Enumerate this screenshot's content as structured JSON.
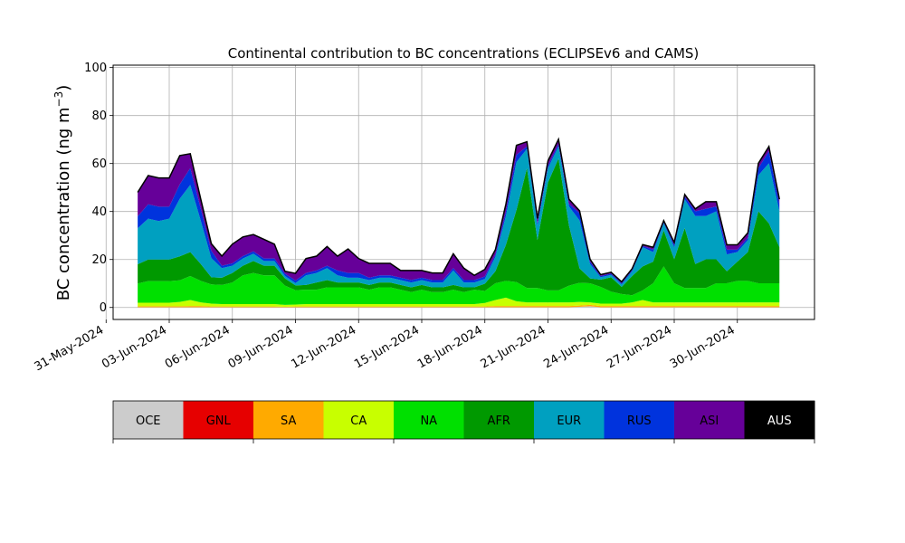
{
  "chart_data": {
    "type": "area",
    "stacked": true,
    "title": "Continental contribution to BC concentrations (ECLIPSEv6 and CAMS)",
    "ylabel_main": "BC concentration (ng m",
    "ylabel_unit_sup": "−3",
    "ylabel_close": ")",
    "xlabel": "",
    "ylim": [
      -5,
      101
    ],
    "yticks": [
      0,
      20,
      40,
      60,
      80,
      100
    ],
    "xlim": [
      "2024-05-31T08:00",
      "2024-07-03T16:00"
    ],
    "xticks": [
      "31-May-2024",
      "03-Jun-2024",
      "06-Jun-2024",
      "09-Jun-2024",
      "12-Jun-2024",
      "15-Jun-2024",
      "18-Jun-2024",
      "21-Jun-2024",
      "24-Jun-2024",
      "27-Jun-2024",
      "30-Jun-2024"
    ],
    "grid": true,
    "data_start": "2024-06-01T12:00",
    "step_hours": 12,
    "total_line_color": "#000000",
    "series": [
      {
        "name": "OCE",
        "color": "#cccccc",
        "values": [
          0.1,
          0.1,
          0.1,
          0.1,
          0.1,
          0.1,
          0.1,
          0.1,
          0.1,
          0.1,
          0.1,
          0.1,
          0.1,
          0.1,
          0.1,
          0.1,
          0.1,
          0.1,
          0.1,
          0.1,
          0.1,
          0.1,
          0.1,
          0.1,
          0.1,
          0.1,
          0.1,
          0.1,
          0.1,
          0.1,
          0.1,
          0.1,
          0.1,
          0.1,
          0.1,
          0.1,
          0.1,
          0.1,
          0.1,
          0.1,
          0.1,
          0.1,
          0.3,
          0.5,
          0.1,
          0.1,
          0.1,
          0.1,
          0.1,
          0.1,
          0.1,
          0.1,
          0.1,
          0.1,
          0.1,
          0.1,
          0.1,
          0.1,
          0.1,
          0.1,
          0.1,
          0.1
        ]
      },
      {
        "name": "GNL",
        "color": "#e60000",
        "values": [
          0,
          0,
          0,
          0,
          0,
          0,
          0,
          0,
          0,
          0,
          0,
          0,
          0,
          0,
          0,
          0,
          0,
          0,
          0,
          0,
          0,
          0,
          0,
          0,
          0,
          0,
          0,
          0,
          0,
          0,
          0,
          0,
          0,
          0,
          0,
          0,
          0,
          0,
          0,
          0,
          0,
          0,
          0,
          0,
          0,
          0,
          0,
          0,
          0,
          0,
          0,
          0,
          0,
          0,
          0,
          0,
          0,
          0,
          0,
          0,
          0,
          0
        ]
      },
      {
        "name": "SA",
        "color": "#ffaa00",
        "values": [
          0.4,
          0.4,
          0.4,
          0.4,
          0.4,
          0.5,
          0.5,
          0.3,
          0.3,
          0.3,
          0.3,
          0.3,
          0.3,
          0.3,
          0.2,
          0.3,
          0.3,
          0.3,
          0.3,
          0.3,
          0.3,
          0.3,
          0.3,
          0.3,
          0.3,
          0.3,
          0.3,
          0.3,
          0.3,
          0.3,
          0.3,
          0.3,
          0.3,
          0.3,
          0.5,
          0.5,
          0.5,
          0.5,
          0.5,
          0.5,
          0.5,
          0.5,
          0.5,
          0.6,
          0.5,
          0.5,
          0.5,
          0.5,
          0.5,
          0.5,
          0.5,
          0.5,
          0.5,
          0.5,
          0.5,
          0.5,
          0.5,
          0.5,
          0.5,
          0.5,
          0.5,
          0.5
        ]
      },
      {
        "name": "CA",
        "color": "#c8ff00",
        "values": [
          1.5,
          1.5,
          1.5,
          1.5,
          1.8,
          2.5,
          1.5,
          1.2,
          1.0,
          1.0,
          1.0,
          1.0,
          1.0,
          1.0,
          0.8,
          0.8,
          1.0,
          1.0,
          1.0,
          1.0,
          1.0,
          1.0,
          1.0,
          1.0,
          1.0,
          1.0,
          1.0,
          1.0,
          1.0,
          1.0,
          1.0,
          1.0,
          1.0,
          1.5,
          2.5,
          3.5,
          2.0,
          1.5,
          1.5,
          1.5,
          1.5,
          1.5,
          1.5,
          1.0,
          1.0,
          1.0,
          1.0,
          1.5,
          2.5,
          1.5,
          1.5,
          1.5,
          1.5,
          1.5,
          1.5,
          1.5,
          1.5,
          1.5,
          1.5,
          1.5,
          1.5,
          1.5
        ]
      },
      {
        "name": "NA",
        "color": "#00e000",
        "values": [
          8,
          9,
          9,
          9,
          9,
          10,
          9,
          8,
          8,
          9,
          12,
          13,
          12,
          12,
          8,
          6,
          6,
          6,
          7,
          7,
          7,
          7,
          6,
          7,
          7,
          6,
          5,
          6,
          5,
          5,
          6,
          5,
          6,
          5,
          7,
          7,
          8,
          6,
          6,
          5,
          5,
          7,
          8,
          8,
          7,
          5,
          4,
          3,
          4,
          8,
          15,
          8,
          6,
          6,
          6,
          8,
          8,
          9,
          9,
          8,
          8,
          8
        ]
      },
      {
        "name": "AFR",
        "color": "#009900",
        "values": [
          8,
          9,
          9,
          9,
          10,
          10,
          7,
          3,
          3,
          4,
          4,
          5,
          4,
          4,
          3,
          2,
          2,
          3,
          3,
          2,
          2,
          2,
          2,
          2,
          2,
          2,
          2,
          2,
          2,
          2,
          2,
          2,
          1,
          3,
          5,
          15,
          30,
          50,
          20,
          45,
          55,
          25,
          6,
          2,
          3,
          6,
          3,
          8,
          10,
          9,
          15,
          10,
          25,
          10,
          12,
          10,
          5,
          8,
          12,
          30,
          25,
          15
        ]
      },
      {
        "name": "EUR",
        "color": "#00a0c0",
        "values": [
          15,
          17,
          16,
          17,
          24,
          28,
          18,
          8,
          4,
          3,
          3,
          3,
          2,
          2,
          1,
          1,
          4,
          4,
          5,
          3,
          2,
          2,
          2,
          2,
          2,
          2,
          2,
          2,
          2,
          2,
          6,
          2,
          2,
          2,
          6,
          12,
          20,
          8,
          6,
          6,
          5,
          8,
          20,
          6,
          1,
          1,
          1,
          2,
          8,
          4,
          3,
          5,
          12,
          20,
          18,
          20,
          7,
          4,
          5,
          15,
          25,
          15
        ]
      },
      {
        "name": "RUS",
        "color": "#0033dd",
        "values": [
          5,
          6,
          6,
          5,
          6,
          7,
          5,
          3,
          1,
          1,
          1,
          1,
          1,
          1,
          1,
          1,
          1,
          1,
          1,
          2,
          2,
          2,
          1,
          1,
          1,
          1,
          1,
          1,
          1,
          1,
          1,
          1,
          1,
          1,
          1,
          2,
          3,
          1,
          1,
          1,
          1,
          1,
          3,
          1,
          0.5,
          0.5,
          0.5,
          0.5,
          0.5,
          1,
          0.5,
          1,
          1,
          2,
          3,
          2,
          2,
          1,
          1,
          3,
          5,
          3
        ]
      },
      {
        "name": "ASI",
        "color": "#660099",
        "values": [
          10,
          12,
          12,
          12,
          12,
          6,
          4,
          3,
          4,
          8,
          8,
          7,
          8,
          6,
          1,
          3,
          6,
          6,
          8,
          6,
          10,
          6,
          6,
          5,
          5,
          3,
          4,
          3,
          3,
          3,
          6,
          5,
          2,
          3,
          2,
          3,
          4,
          2,
          2,
          2,
          2,
          2,
          1,
          1,
          0.6,
          0.6,
          0.6,
          0.6,
          0.6,
          1,
          0.6,
          1,
          1,
          1,
          3,
          2,
          2,
          2,
          2,
          2,
          2,
          2
        ]
      },
      {
        "name": "AUS",
        "color": "#000000",
        "values": [
          0,
          0,
          0,
          0,
          0,
          0,
          0,
          0,
          0,
          0,
          0,
          0,
          0,
          0,
          0,
          0,
          0,
          0,
          0,
          0,
          0,
          0,
          0,
          0,
          0,
          0,
          0,
          0,
          0,
          0,
          0,
          0,
          0,
          0,
          0,
          0,
          0,
          0,
          0,
          0,
          0,
          0,
          0,
          0,
          0,
          0,
          0,
          0,
          0,
          0,
          0,
          0,
          0,
          0,
          0,
          0,
          0,
          0,
          0,
          0,
          0,
          0
        ]
      }
    ]
  }
}
